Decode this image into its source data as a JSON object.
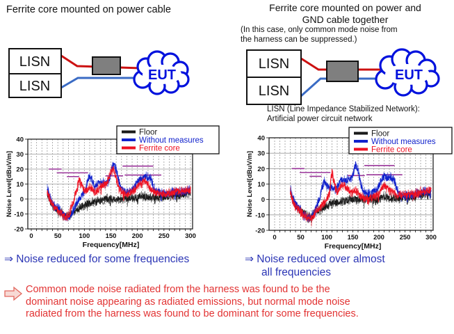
{
  "slide": {
    "left": {
      "title": "Ferrite core mounted on power cable",
      "diagram": {
        "lisn_label": "LISN",
        "eut_label": "EUT"
      },
      "conclusion": "⇒ Noise reduced for some frequencies"
    },
    "right": {
      "title_lines": [
        "Ferrite core mounted on power and",
        "GND cable together"
      ],
      "note_lines": [
        "(In this case, only common mode noise from",
        "the harness can be suppressed.)"
      ],
      "diagram": {
        "lisn_label": "LISN",
        "eut_label": "EUT"
      },
      "lisn_caption_lines": [
        "LISN (Line Impedance Stabilized Network):",
        "Artificial power circuit network"
      ],
      "conclusion_lines": [
        "⇒ Noise reduced over almost",
        "all frequencies"
      ]
    },
    "footer_lines": [
      "Common mode noise radiated from the harness was found to be the",
      "dominant noise appearing as radiated emissions, but normal mode noise",
      "radiated from the harness was found to be dominant for some frequencies."
    ]
  },
  "colors": {
    "accent_blue": "#2b35b5",
    "text_red": "#e23333",
    "wire_red": "#cc1111",
    "wire_blue": "#3a6bc4",
    "eut_blue": "#0011dd",
    "ferrite_gray": "#7f7f7f",
    "limit_purple": "#993399",
    "floor_black": "#1a1a1a",
    "series_blue": "#1122cc",
    "series_red": "#ee1122"
  },
  "chart_data": [
    {
      "type": "line",
      "title": "",
      "xlabel": "Frequency[MHz]",
      "ylabel": "Noise Level[dBuV/m]",
      "xlim": [
        0,
        300
      ],
      "ylim": [
        -20,
        40
      ],
      "xticks": [
        0,
        50,
        100,
        150,
        200,
        250,
        300
      ],
      "yticks": [
        -20,
        -10,
        0,
        10,
        20,
        30,
        40
      ],
      "grid": true,
      "legend_position": "top-right",
      "x_start": 30,
      "x_step": 5,
      "series": [
        {
          "name": "Floor",
          "color": "#1a1a1a",
          "values": [
            4,
            -1,
            -4,
            -6,
            -7,
            -9,
            -10,
            -11,
            -11,
            -10,
            -8,
            -7,
            -6,
            -5,
            -4,
            -3,
            -3,
            -2,
            -2,
            -1,
            -1,
            -1,
            0,
            0,
            0,
            0,
            0,
            0,
            0,
            0,
            0,
            1,
            1,
            1,
            1,
            2,
            2,
            2,
            1,
            1,
            1,
            1,
            1,
            1,
            1,
            1,
            2,
            2,
            2,
            3,
            3,
            3,
            4,
            4,
            4
          ]
        },
        {
          "name": "Without measures",
          "color": "#1122cc",
          "values": [
            8,
            2,
            -3,
            -5,
            -6,
            -8,
            -10,
            -12,
            -12,
            -10,
            -7,
            -3,
            0,
            2,
            5,
            10,
            16,
            12,
            8,
            10,
            12,
            11,
            10,
            12,
            17,
            24,
            20,
            12,
            7,
            5,
            5,
            5,
            6,
            8,
            11,
            13,
            14,
            15,
            15,
            14,
            8,
            6,
            5,
            4,
            4,
            4,
            4,
            5,
            5,
            5,
            5,
            5,
            5,
            6,
            6
          ]
        },
        {
          "name": "Ferrite core",
          "color": "#ee1122",
          "values": [
            5,
            0,
            -4,
            -6,
            -7,
            -9,
            -11,
            -12,
            -11,
            -6,
            -1,
            6,
            13,
            10,
            5,
            6,
            8,
            6,
            4,
            6,
            8,
            9,
            10,
            13,
            18,
            20,
            14,
            8,
            5,
            3,
            3,
            4,
            5,
            6,
            8,
            10,
            12,
            12,
            10,
            7,
            5,
            4,
            4,
            4,
            3,
            4,
            4,
            4,
            5,
            5,
            5,
            5,
            6,
            6,
            6
          ]
        }
      ],
      "limit_segments": [
        {
          "y": 20,
          "x1": 33,
          "x2": 57
        },
        {
          "y": 17.5,
          "x1": 48,
          "x2": 107
        },
        {
          "y": 15,
          "x1": 67,
          "x2": 90
        },
        {
          "y": 15.5,
          "x1": 140,
          "x2": 173
        },
        {
          "y": 22,
          "x1": 172,
          "x2": 230
        },
        {
          "y": 16,
          "x1": 176,
          "x2": 245
        }
      ]
    },
    {
      "type": "line",
      "title": "",
      "xlabel": "Frequency[MHz]",
      "ylabel": "Noise Level[dBuV/m]",
      "xlim": [
        0,
        300
      ],
      "ylim": [
        -20,
        40
      ],
      "xticks": [
        0,
        50,
        100,
        150,
        200,
        250,
        300
      ],
      "yticks": [
        -20,
        -10,
        0,
        10,
        20,
        30,
        40
      ],
      "grid": true,
      "legend_position": "top-right",
      "x_start": 30,
      "x_step": 5,
      "series": [
        {
          "name": "Floor",
          "color": "#1a1a1a",
          "values": [
            4,
            -1,
            -4,
            -6,
            -7,
            -9,
            -10,
            -11,
            -11,
            -10,
            -8,
            -7,
            -6,
            -5,
            -4,
            -3,
            -3,
            -2,
            -2,
            -1,
            -1,
            -1,
            0,
            0,
            0,
            0,
            0,
            0,
            0,
            0,
            0,
            1,
            1,
            1,
            1,
            2,
            2,
            2,
            1,
            1,
            1,
            1,
            1,
            1,
            1,
            1,
            2,
            2,
            2,
            3,
            3,
            3,
            4,
            4,
            4
          ]
        },
        {
          "name": "Without measures",
          "color": "#1122cc",
          "values": [
            8,
            1,
            -3,
            -5,
            -7,
            -9,
            -11,
            -12,
            -12,
            -9,
            -5,
            -1,
            6,
            12,
            9,
            7,
            8,
            6,
            8,
            11,
            13,
            12,
            13,
            13,
            16,
            23,
            19,
            10,
            6,
            4,
            4,
            4,
            5,
            6,
            9,
            13,
            15,
            14,
            15,
            14,
            12,
            6,
            4,
            3,
            3,
            3,
            3,
            3,
            4,
            4,
            4,
            5,
            5,
            5,
            6
          ]
        },
        {
          "name": "Ferrite core",
          "color": "#ee1122",
          "values": [
            5,
            -1,
            -4,
            -6,
            -8,
            -10,
            -11,
            -12,
            -12,
            -10,
            -8,
            -6,
            -4,
            -2,
            0,
            4,
            18,
            10,
            5,
            8,
            10,
            9,
            7,
            5,
            5,
            6,
            4,
            2,
            1,
            1,
            1,
            1,
            2,
            3,
            4,
            6,
            9,
            8,
            6,
            5,
            4,
            3,
            3,
            3,
            3,
            3,
            3,
            4,
            4,
            4,
            5,
            5,
            5,
            6,
            6
          ]
        }
      ],
      "limit_segments": [
        {
          "y": 20,
          "x1": 33,
          "x2": 57
        },
        {
          "y": 17.5,
          "x1": 48,
          "x2": 107
        },
        {
          "y": 15,
          "x1": 67,
          "x2": 90
        },
        {
          "y": 15.5,
          "x1": 140,
          "x2": 173
        },
        {
          "y": 22,
          "x1": 172,
          "x2": 230
        },
        {
          "y": 16,
          "x1": 176,
          "x2": 245
        }
      ]
    }
  ]
}
